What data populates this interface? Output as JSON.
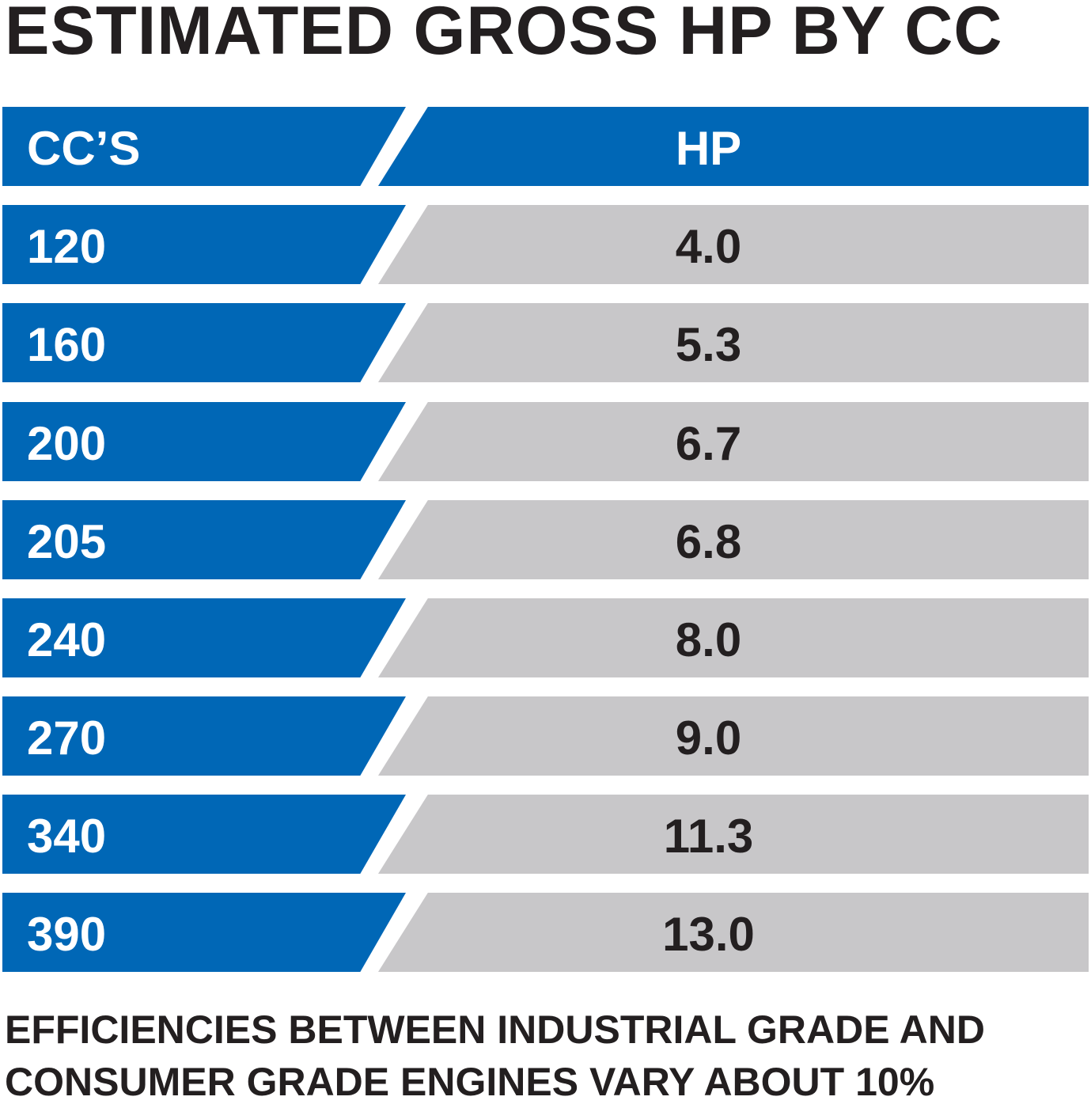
{
  "title": "ESTIMATED GROSS HP BY CC",
  "table": {
    "header": {
      "cc": "CC’S",
      "hp": "HP"
    },
    "rows": [
      {
        "cc": "120",
        "hp": "4.0"
      },
      {
        "cc": "160",
        "hp": "5.3"
      },
      {
        "cc": "200",
        "hp": "6.7"
      },
      {
        "cc": "205",
        "hp": "6.8"
      },
      {
        "cc": "240",
        "hp": "8.0"
      },
      {
        "cc": "270",
        "hp": "9.0"
      },
      {
        "cc": "340",
        "hp": "11.3"
      },
      {
        "cc": "390",
        "hp": "13.0"
      }
    ]
  },
  "footnote": {
    "line1": "EFFICIENCIES BETWEEN INDUSTRIAL GRADE AND",
    "line2": "CONSUMER GRADE ENGINES VARY ABOUT 10%"
  },
  "colors": {
    "accent_blue": "#0067b6",
    "row_gray": "#c8c7c9",
    "text_dark": "#231f20"
  }
}
